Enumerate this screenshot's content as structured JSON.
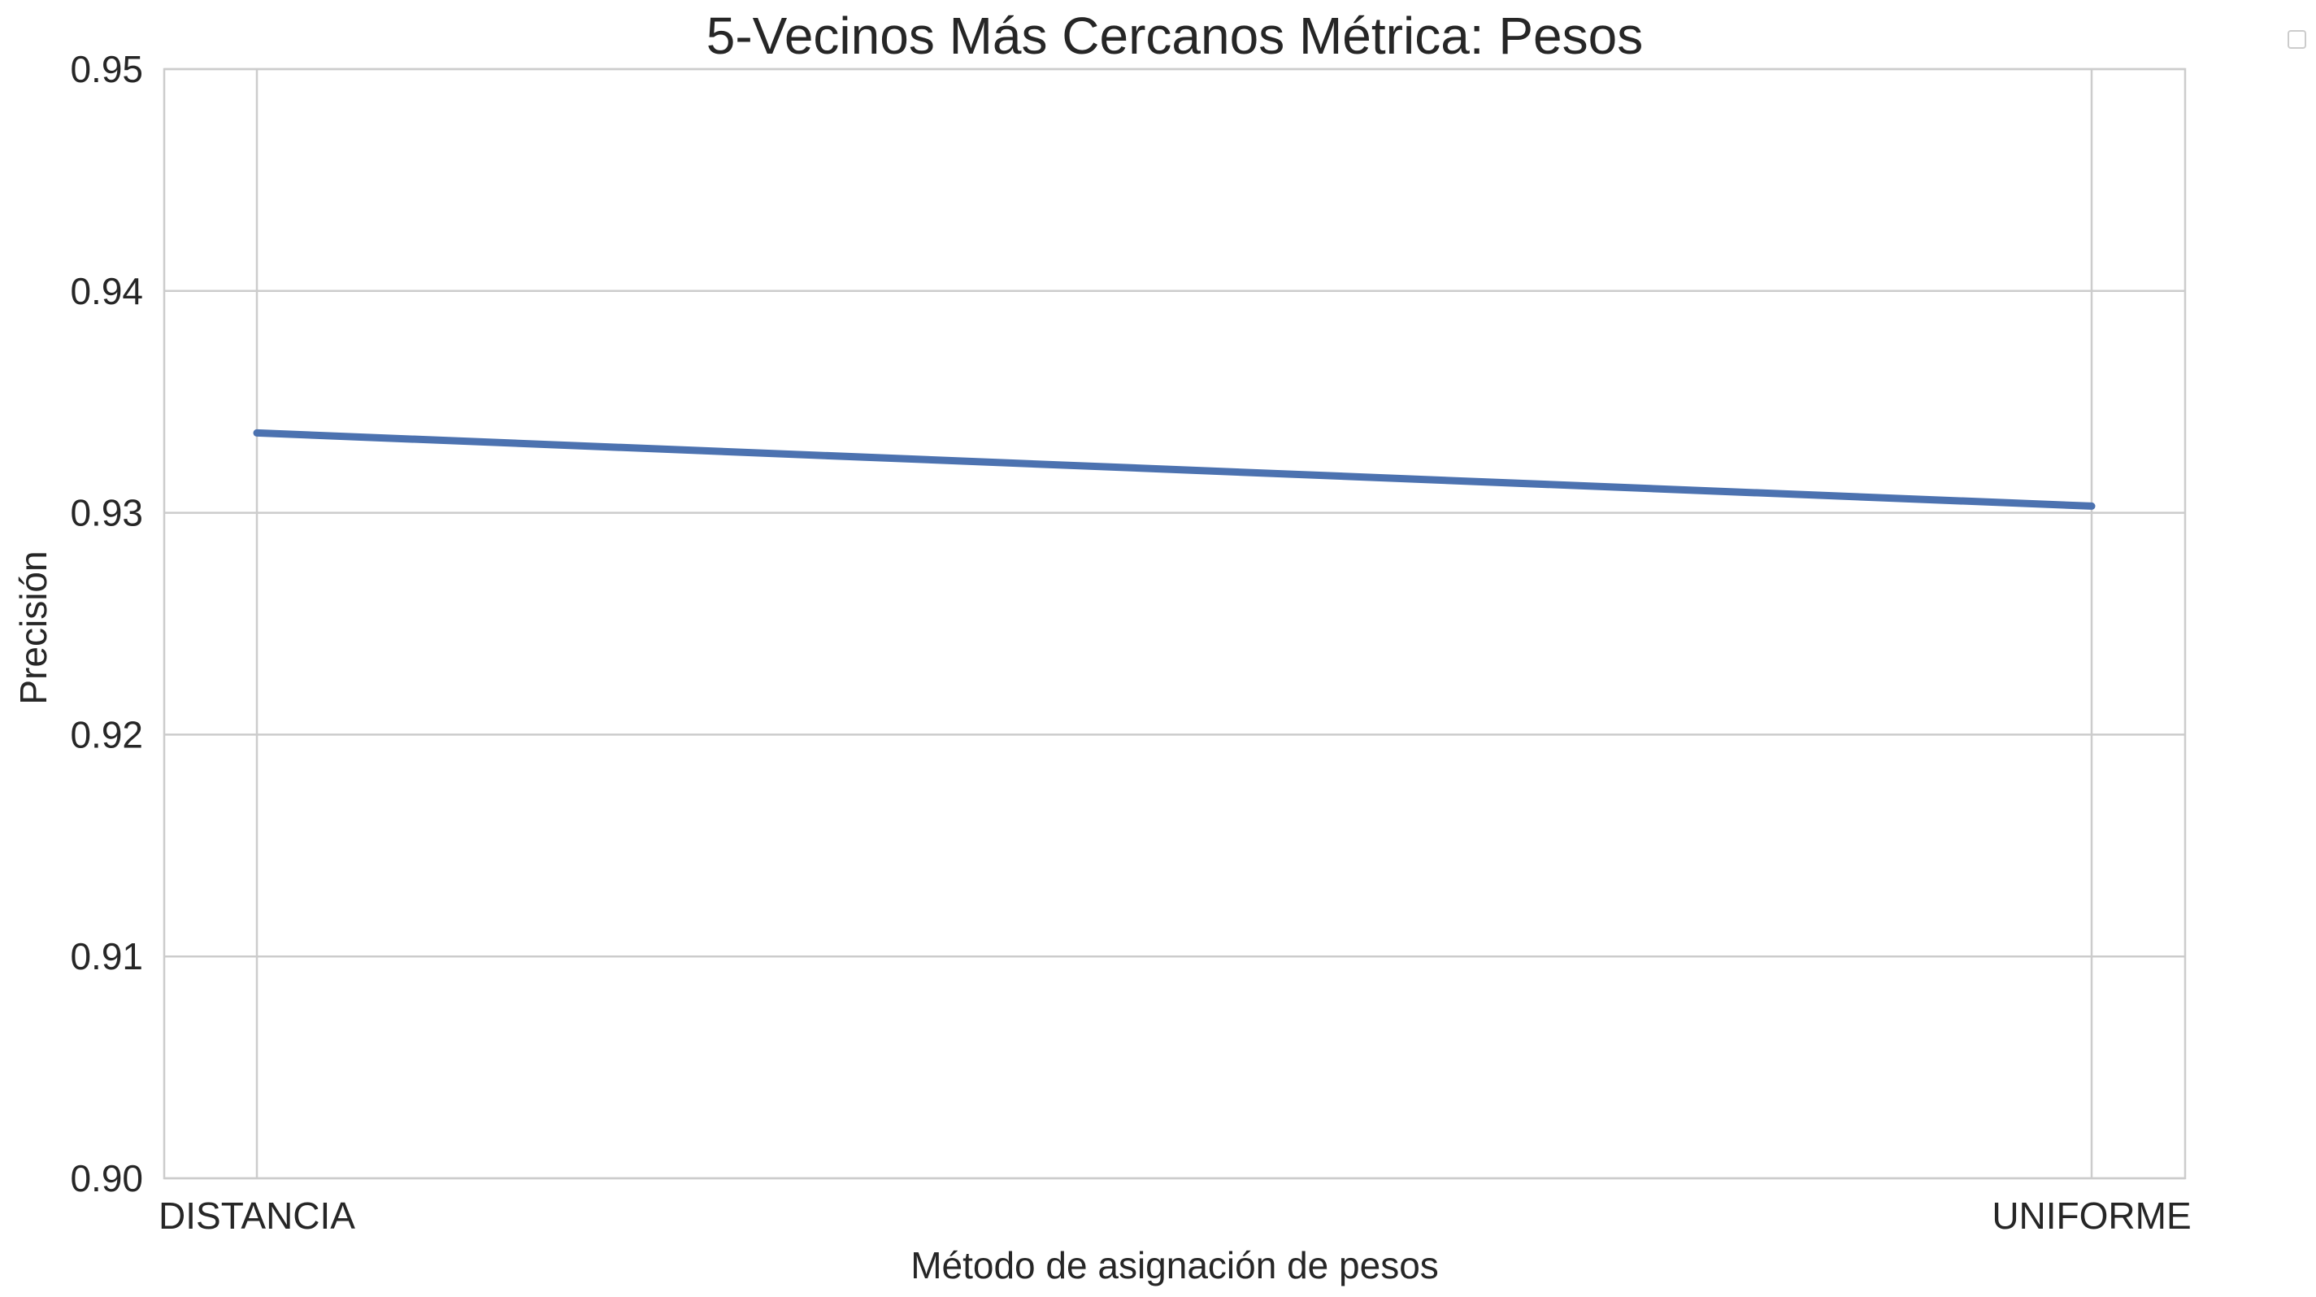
{
  "chart_data": {
    "type": "line",
    "title": "5-Vecinos Más Cercanos Métrica: Pesos",
    "xlabel": "Método de asignación de pesos",
    "ylabel": "Precisión",
    "categories": [
      "DISTANCIA",
      "UNIFORME"
    ],
    "series": [
      {
        "values": [
          0.9336,
          0.9303
        ],
        "color": "#4c72b0"
      }
    ],
    "ylim": [
      0.9,
      0.95
    ],
    "yticks": [
      0.9,
      0.91,
      0.92,
      0.93,
      0.94,
      0.95
    ],
    "ytick_labels": [
      "0.90",
      "0.91",
      "0.92",
      "0.93",
      "0.94",
      "0.95"
    ],
    "grid": true,
    "legend": {
      "placement": "top-right outside",
      "entries": []
    }
  }
}
